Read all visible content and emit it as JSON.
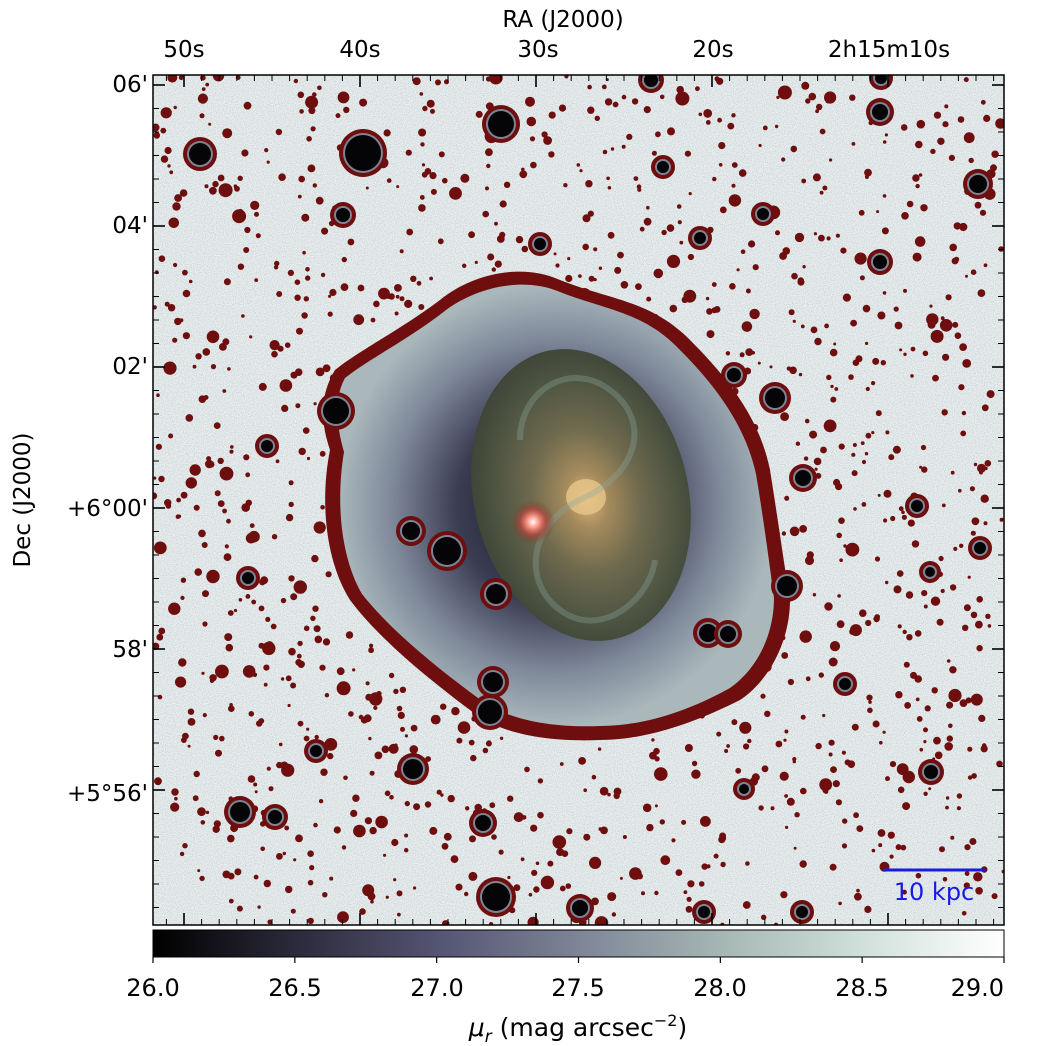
{
  "axes": {
    "top_label": "RA (J2000)",
    "left_label": "Dec (J2000)",
    "ra_ticks": [
      "50s",
      "40s",
      "30s",
      "20s",
      "2h15m10s"
    ],
    "dec_ticks": [
      "06'",
      "04'",
      "02'",
      "+6°00'",
      "58'",
      "+5°56'"
    ]
  },
  "colorbar": {
    "ticks": [
      "26.0",
      "26.5",
      "27.0",
      "27.5",
      "28.0",
      "28.5",
      "29.0"
    ],
    "label_mu": "μ",
    "label_sub": "r",
    "label_rest": " (mag arcsec",
    "label_exp": "−2",
    "label_close": ")",
    "gradient": [
      "#000000",
      "#2b2a3a",
      "#545473",
      "#7e8596",
      "#a5b6b4",
      "#d0e0da",
      "#ffffff"
    ],
    "min": 26.0,
    "max": 29.0
  },
  "scalebar": {
    "label": "10 kpc",
    "color": "#1a1ae6"
  },
  "image": {
    "contour_color": "#6e0e0e",
    "sky_color": "#e9eeee"
  }
}
